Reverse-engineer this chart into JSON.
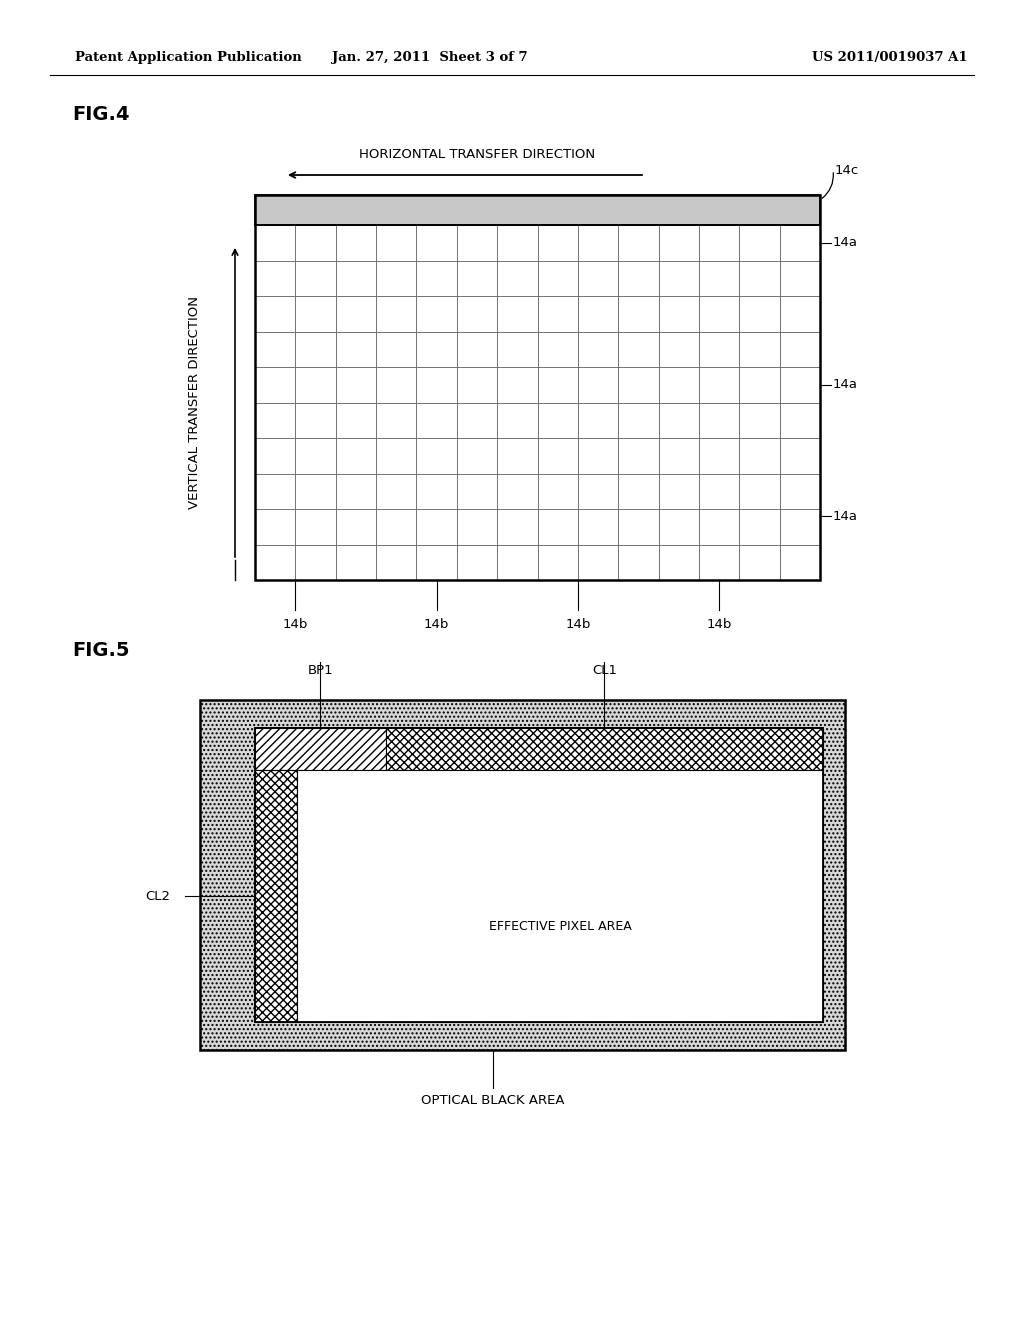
{
  "header_left": "Patent Application Publication",
  "header_center": "Jan. 27, 2011  Sheet 3 of 7",
  "header_right": "US 2011/0019037 A1",
  "fig4_label": "FIG.4",
  "fig5_label": "FIG.5",
  "fig4": {
    "grid_cols": 14,
    "grid_rows": 10,
    "horiz_label": "HORIZONTAL TRANSFER DIRECTION",
    "vert_label": "VERTICAL TRANSFER DIRECTION",
    "label_14c": "14c",
    "label_14a_list": [
      "14a",
      "14a",
      "14a"
    ],
    "label_14b_list": [
      "14b",
      "14b",
      "14b",
      "14b"
    ]
  },
  "fig5": {
    "label_bp1": "BP1",
    "label_cl1": "CL1",
    "label_cl2": "CL2",
    "label_effective": "EFFECTIVE PIXEL AREA",
    "label_optical": "OPTICAL BLACK AREA"
  },
  "bg_color": "#ffffff",
  "line_color": "#000000"
}
